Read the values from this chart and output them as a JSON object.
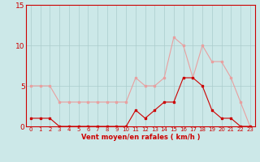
{
  "x": [
    0,
    1,
    2,
    3,
    4,
    5,
    6,
    7,
    8,
    9,
    10,
    11,
    12,
    13,
    14,
    15,
    16,
    17,
    18,
    19,
    20,
    21,
    22,
    23
  ],
  "vent_moyen": [
    1,
    1,
    1,
    0,
    0,
    0,
    0,
    0,
    0,
    0,
    0,
    2,
    1,
    2,
    3,
    3,
    6,
    6,
    5,
    2,
    1,
    1,
    0,
    0
  ],
  "en_rafales": [
    5,
    5,
    5,
    3,
    3,
    3,
    3,
    3,
    3,
    3,
    3,
    6,
    5,
    5,
    6,
    11,
    10,
    6,
    10,
    8,
    8,
    6,
    3,
    0
  ],
  "color_moyen": "#cc0000",
  "color_rafales": "#e8a0a0",
  "bg_color": "#cce8e8",
  "grid_color": "#aacccc",
  "xlabel": "Vent moyen/en rafales ( km/h )",
  "xlabel_color": "#cc0000",
  "yticks": [
    0,
    5,
    10,
    15
  ],
  "ylim": [
    0,
    15
  ],
  "xlim": [
    -0.5,
    23.5
  ],
  "tick_color": "#cc0000",
  "spine_color": "#cc0000",
  "marker_moyen": "s",
  "marker_rafales": "s",
  "markersize": 2.0,
  "linewidth": 0.8,
  "xlabel_fontsize": 6.0,
  "tick_fontsize_x": 5.0,
  "tick_fontsize_y": 6.5
}
